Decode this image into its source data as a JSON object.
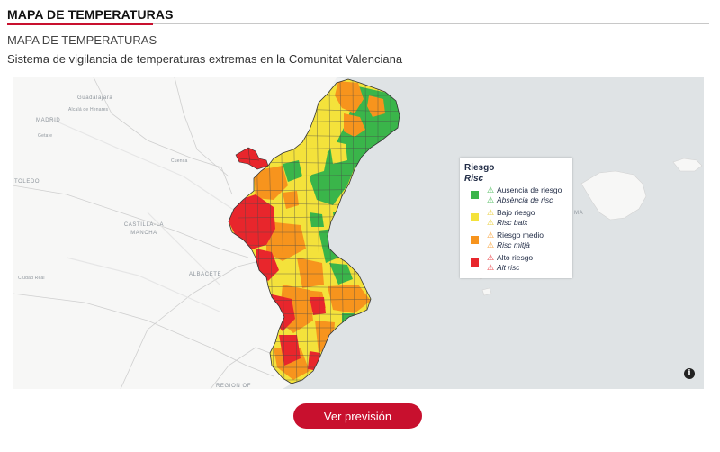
{
  "header": {
    "title": "MAPA DE TEMPERATURAS"
  },
  "page": {
    "subtitle": "MAPA DE TEMPERATURAS",
    "description": "Sistema de vigilancia de temperaturas extremas en la Comunitat Valenciana"
  },
  "map": {
    "places": [
      {
        "name": "Guadalajara"
      },
      {
        "name": "Alcalá de Henares"
      },
      {
        "name": "MADRID"
      },
      {
        "name": "Getafe"
      },
      {
        "name": "Cuenca"
      },
      {
        "name": "TOLEDO"
      },
      {
        "name": "CASTILLA-LA MANCHA"
      },
      {
        "name": "Ciudad Real"
      },
      {
        "name": "ALBACETE"
      },
      {
        "name": "REGION OF"
      },
      {
        "name": "MA"
      }
    ],
    "info_icon": "info-icon",
    "colors": {
      "land": "#f7f7f6",
      "sea": "#dfe3e5",
      "provinces": "#c8c8c8"
    }
  },
  "legend": {
    "title": "Riesgo",
    "title_alt": "Risc",
    "items": [
      {
        "label": "Ausencia de riesgo",
        "label_alt": "Absència de risc",
        "color": "#3ab54a"
      },
      {
        "label": "Bajo riesgo",
        "label_alt": "Risc baix",
        "color": "#f4e23b"
      },
      {
        "label": "Riesgo medio",
        "label_alt": "Risc mitjà",
        "color": "#f7941d"
      },
      {
        "label": "Alto riesgo",
        "label_alt": "Alt risc",
        "color": "#e8262c"
      }
    ],
    "warn_icon": "warning-triangle-icon"
  },
  "button": {
    "label": "Ver previsión"
  }
}
